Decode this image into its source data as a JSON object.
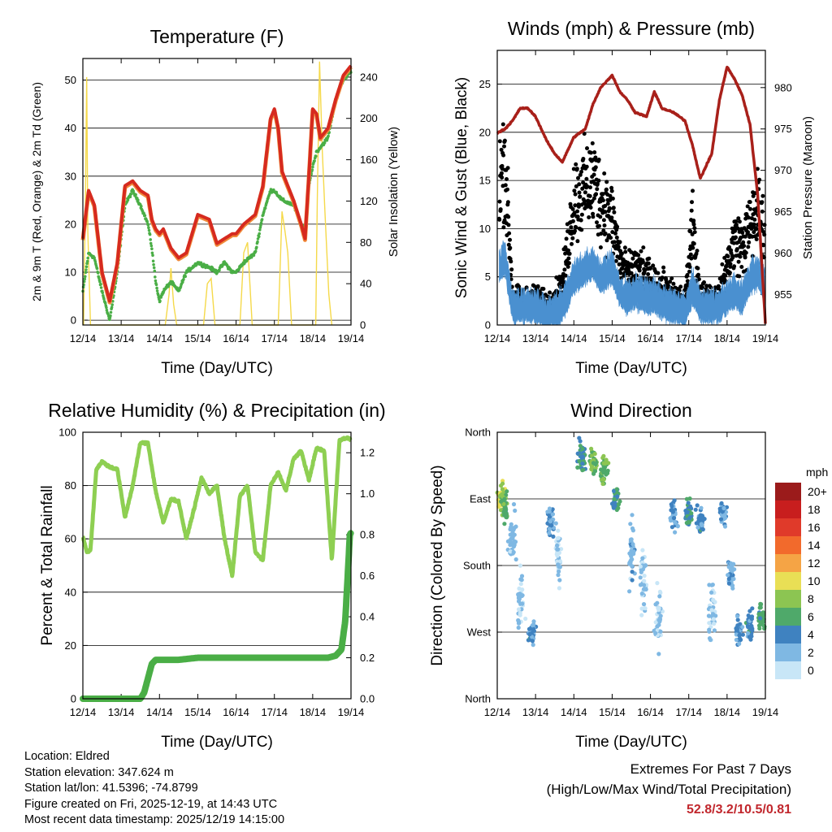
{
  "chart_data": [
    {
      "type": "line",
      "title": "Temperature (F)",
      "xlabel": "Time (Day/UTC)",
      "ylabel": "2m & 9m T (Red, Orange) & 2m Td (Green)",
      "y2label": "Solar Insolation (Yellow)",
      "xticks": [
        "12/14",
        "13/14",
        "14/14",
        "15/14",
        "16/14",
        "17/14",
        "18/14",
        "19/14"
      ],
      "ylim": [
        -1,
        54.5
      ],
      "yticks": [
        0,
        10,
        20,
        30,
        40,
        50
      ],
      "y2lim": [
        0,
        258
      ],
      "y2ticks": [
        0,
        40,
        80,
        120,
        160,
        200,
        240
      ],
      "x": [
        0,
        0.15,
        0.3,
        0.5,
        0.7,
        0.9,
        1.1,
        1.3,
        1.5,
        1.7,
        1.8,
        1.9,
        2.0,
        2.1,
        2.3,
        2.5,
        2.7,
        3.0,
        3.3,
        3.5,
        3.7,
        3.9,
        4.0,
        4.2,
        4.5,
        4.7,
        4.9,
        5.0,
        5.1,
        5.2,
        5.5,
        5.7,
        5.8,
        5.9,
        6.0,
        6.1,
        6.2,
        6.4,
        6.6,
        6.8,
        7.0
      ],
      "series": [
        {
          "name": "2m T",
          "color": "#d62a1f",
          "values": [
            17,
            27,
            24,
            10,
            4,
            12,
            28,
            29,
            27,
            26,
            21,
            19,
            18,
            19,
            15,
            13,
            14,
            22,
            21,
            16,
            17,
            18,
            18,
            20,
            22,
            28,
            42,
            44,
            40,
            31,
            25,
            20,
            17,
            30,
            44,
            43,
            38,
            40,
            46,
            51,
            53
          ]
        },
        {
          "name": "9m T",
          "color": "#f08a3a",
          "values": [
            17,
            27,
            24,
            10,
            4,
            12,
            28,
            29,
            27,
            26,
            21,
            19,
            18,
            19,
            15,
            13,
            14,
            22,
            21,
            16,
            17,
            18,
            18,
            20,
            22,
            28,
            42,
            44,
            40,
            31,
            25,
            20,
            17,
            30,
            44,
            43,
            38,
            40,
            46,
            51,
            53
          ]
        },
        {
          "name": "2m Td",
          "color": "#4aae46",
          "values": [
            6,
            14,
            13,
            6,
            0,
            10,
            24,
            27,
            24,
            20,
            15,
            8,
            4,
            6,
            8,
            6,
            10,
            12,
            11,
            10,
            12,
            10,
            10,
            12,
            14,
            22,
            27,
            27,
            26,
            25,
            24,
            20,
            19,
            28,
            32,
            35,
            36,
            38,
            46,
            50,
            52
          ]
        }
      ],
      "solar_insolation": {
        "name": "Solar Insolation",
        "color": "#f5d94a",
        "x": [
          0.02,
          0.07,
          0.1,
          0.13,
          0.2,
          2.15,
          2.25,
          2.3,
          2.37,
          2.45,
          3.15,
          3.25,
          3.35,
          3.45,
          4.1,
          4.2,
          4.3,
          4.42,
          5.1,
          5.2,
          5.28,
          5.35,
          5.45,
          6.08,
          6.12,
          6.18,
          6.25,
          6.32,
          6.42,
          6.5
        ],
        "values": [
          0,
          130,
          240,
          90,
          0,
          0,
          30,
          55,
          20,
          0,
          0,
          40,
          45,
          0,
          0,
          70,
          80,
          0,
          0,
          110,
          90,
          70,
          0,
          0,
          120,
          255,
          170,
          110,
          30,
          0
        ]
      }
    },
    {
      "type": "scatter",
      "title": "Winds (mph) & Pressure (mb)",
      "xlabel": "Time (Day/UTC)",
      "ylabel": "Sonic Wind & Gust (Blue, Black)",
      "y2label": "Station Pressure (Maroon)",
      "xticks": [
        "12/14",
        "13/14",
        "14/14",
        "15/14",
        "16/14",
        "17/14",
        "18/14",
        "19/14"
      ],
      "ylim": [
        0,
        28.5
      ],
      "yticks": [
        0,
        5,
        10,
        15,
        20,
        25
      ],
      "y2lim": [
        951.3,
        984.5
      ],
      "y2ticks": [
        955,
        960,
        965,
        970,
        975,
        980
      ],
      "x": [
        0,
        0.2,
        0.4,
        0.6,
        0.8,
        1.0,
        1.3,
        1.5,
        1.7,
        2.0,
        2.3,
        2.5,
        2.7,
        3.0,
        3.2,
        3.4,
        3.6,
        3.9,
        4.1,
        4.3,
        4.6,
        4.9,
        5.1,
        5.3,
        5.6,
        5.8,
        6.0,
        6.2,
        6.4,
        6.6,
        6.8,
        7.0
      ],
      "series": [
        {
          "name": "Sonic Wind",
          "color": "#4a90d0",
          "values": [
            6,
            7,
            2,
            2,
            2,
            2,
            1,
            1.5,
            2,
            5,
            6,
            6.5,
            5,
            6,
            3.5,
            3,
            3.5,
            3,
            3,
            2.5,
            2,
            1.5,
            4,
            2,
            2,
            2,
            3,
            3.5,
            3,
            5,
            5.5,
            4
          ]
        },
        {
          "name": "Gust",
          "color": "#000000",
          "values": [
            14,
            17,
            3,
            2.5,
            2.5,
            3,
            2,
            3,
            4,
            13,
            14,
            15,
            13,
            11,
            7,
            5,
            6,
            5,
            4,
            4,
            3,
            2.5,
            10,
            3,
            3,
            3,
            6,
            9,
            8,
            10,
            12,
            9
          ]
        },
        {
          "name": "Station Pressure",
          "color": "#a8201a",
          "axis": "right",
          "values": [
            974.5,
            975,
            976,
            977.5,
            977.5,
            976.5,
            973.5,
            972,
            971,
            974,
            975,
            978,
            980,
            981.5,
            979.5,
            978.5,
            977,
            976.5,
            979.5,
            977.5,
            977,
            976,
            973,
            969,
            972,
            978.5,
            982.5,
            981,
            979,
            975.5,
            967,
            951.5
          ]
        }
      ]
    },
    {
      "type": "line",
      "title": "Relative Humidity (%) & Precipitation (in)",
      "xlabel": "Time (Day/UTC)",
      "ylabel": "Percent & Total Rainfall",
      "xticks": [
        "12/14",
        "13/14",
        "14/14",
        "15/14",
        "16/14",
        "17/14",
        "18/14",
        "19/14"
      ],
      "ylim": [
        0,
        100
      ],
      "yticks": [
        0,
        20,
        40,
        60,
        80,
        100
      ],
      "y2lim": [
        0,
        1.3
      ],
      "y2ticks": [
        0.0,
        0.2,
        0.4,
        0.6,
        0.8,
        1.0,
        1.2
      ],
      "series": [
        {
          "name": "Relative Humidity",
          "color": "#8ecf52",
          "x": [
            0,
            0.1,
            0.2,
            0.35,
            0.5,
            0.7,
            0.9,
            1.1,
            1.3,
            1.5,
            1.7,
            1.9,
            2.1,
            2.3,
            2.5,
            2.7,
            2.9,
            3.1,
            3.3,
            3.5,
            3.7,
            3.9,
            4.1,
            4.3,
            4.5,
            4.7,
            4.9,
            5.1,
            5.3,
            5.5,
            5.7,
            5.9,
            6.1,
            6.3,
            6.5,
            6.7,
            6.9,
            7.0
          ],
          "values": [
            61,
            55,
            56,
            86,
            89,
            87,
            86,
            68,
            80,
            96,
            96,
            78,
            66,
            75,
            74,
            60,
            71,
            83,
            77,
            80,
            60,
            46,
            76,
            80,
            55,
            52,
            80,
            85,
            78,
            90,
            93,
            82,
            94,
            93,
            52,
            97,
            98,
            97
          ]
        },
        {
          "name": "Total Rainfall",
          "color": "#4aae46",
          "axis": "right",
          "x": [
            0,
            1.0,
            1.5,
            1.6,
            1.7,
            1.8,
            1.9,
            2.0,
            2.5,
            3.0,
            3.5,
            4.0,
            4.5,
            5.0,
            5.5,
            6.0,
            6.4,
            6.6,
            6.75,
            6.85,
            6.92,
            6.97,
            7.0
          ],
          "values": [
            0.0,
            0.0,
            0.0,
            0.03,
            0.1,
            0.17,
            0.19,
            0.19,
            0.19,
            0.2,
            0.2,
            0.2,
            0.2,
            0.2,
            0.2,
            0.2,
            0.2,
            0.21,
            0.24,
            0.38,
            0.62,
            0.8,
            0.81
          ]
        }
      ]
    },
    {
      "type": "scatter",
      "title": "Wind Direction",
      "xlabel": "Time (Day/UTC)",
      "ylabel": "Direction (Colored By Speed)",
      "xticks": [
        "12/14",
        "13/14",
        "14/14",
        "15/14",
        "16/14",
        "17/14",
        "18/14",
        "19/14"
      ],
      "yticks": [
        "North",
        "West",
        "South",
        "East",
        "North"
      ],
      "ylim": [
        0,
        360
      ],
      "colorbar": {
        "title": "mph",
        "labels": [
          "20+",
          "18",
          "16",
          "14",
          "12",
          "10",
          "8",
          "6",
          "4",
          "2",
          "0"
        ],
        "colors": [
          "#9b1b1b",
          "#c81e1e",
          "#e03a2a",
          "#f26a2c",
          "#f5a445",
          "#e9df55",
          "#8cc552",
          "#4fa96a",
          "#3f82c0",
          "#7fb8e3",
          "#c8e6f7"
        ]
      },
      "clusters": [
        {
          "x": 0.1,
          "y": 270,
          "speed": 9
        },
        {
          "x": 0.2,
          "y": 260,
          "speed": 6
        },
        {
          "x": 0.4,
          "y": 220,
          "speed": 2
        },
        {
          "x": 0.6,
          "y": 140,
          "speed": 1
        },
        {
          "x": 0.9,
          "y": 90,
          "speed": 3
        },
        {
          "x": 1.4,
          "y": 240,
          "speed": 3
        },
        {
          "x": 1.6,
          "y": 200,
          "speed": 1
        },
        {
          "x": 2.2,
          "y": 330,
          "speed": 5
        },
        {
          "x": 2.5,
          "y": 320,
          "speed": 7
        },
        {
          "x": 2.8,
          "y": 310,
          "speed": 7
        },
        {
          "x": 3.1,
          "y": 270,
          "speed": 5
        },
        {
          "x": 3.5,
          "y": 200,
          "speed": 2
        },
        {
          "x": 3.8,
          "y": 160,
          "speed": 1
        },
        {
          "x": 4.2,
          "y": 110,
          "speed": 1
        },
        {
          "x": 4.6,
          "y": 250,
          "speed": 3
        },
        {
          "x": 5.0,
          "y": 250,
          "speed": 5
        },
        {
          "x": 5.3,
          "y": 240,
          "speed": 4
        },
        {
          "x": 5.6,
          "y": 120,
          "speed": 1
        },
        {
          "x": 5.9,
          "y": 250,
          "speed": 3
        },
        {
          "x": 6.1,
          "y": 170,
          "speed": 3
        },
        {
          "x": 6.3,
          "y": 90,
          "speed": 3
        },
        {
          "x": 6.6,
          "y": 100,
          "speed": 4
        },
        {
          "x": 6.9,
          "y": 110,
          "speed": 6
        }
      ]
    }
  ],
  "footer": {
    "location": "Location: Eldred",
    "elevation": "Station elevation: 347.624 m",
    "latlon": "Station lat/lon: 41.5396; -74.8799",
    "created": "Figure created on Fri, 2025-12-19, at 14:43 UTC",
    "recent": "Most recent data timestamp: 2025/12/19 14:15:00"
  },
  "extremes": {
    "title": "Extremes For Past 7 Days",
    "subtitle": "(High/Low/Max Wind/Total Precipitation)",
    "values": "52.8/3.2/10.5/0.81"
  }
}
